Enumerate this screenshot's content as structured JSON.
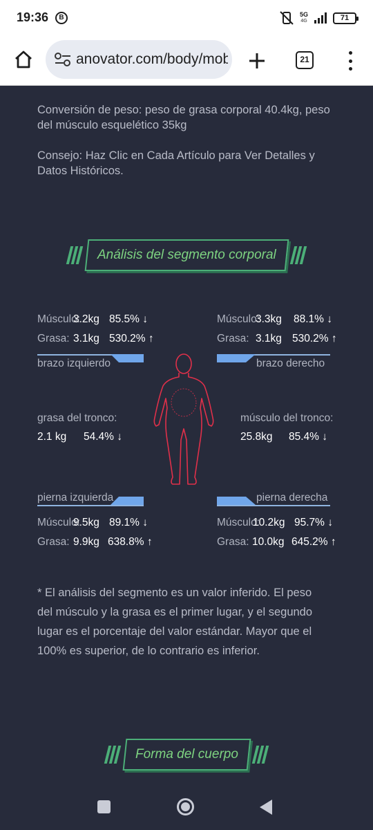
{
  "status": {
    "time": "19:36",
    "b_badge": "B",
    "net": "5G",
    "net_sub": "4G",
    "battery": "71"
  },
  "browser": {
    "url": "anovator.com/body/mobile",
    "tab_count": "21"
  },
  "intro": {
    "conversion": "Conversión de peso: peso de grasa corporal 40.4kg, peso del músculo esquelético 35kg",
    "tip": "Consejo: Haz Clic en Cada Artículo para Ver Detalles y Datos Históricos."
  },
  "segment_title": "Análisis del segmento corporal",
  "segments": {
    "left_arm": {
      "name": "brazo izquierdo",
      "muscle_label": "Músculo:",
      "muscle_kg": "3.2kg",
      "muscle_pct": "85.5% ↓",
      "fat_label": "Grasa:",
      "fat_kg": "3.1kg",
      "fat_pct": "530.2% ↑"
    },
    "right_arm": {
      "name": "brazo derecho",
      "muscle_label": "Músculo:",
      "muscle_kg": "3.3kg",
      "muscle_pct": "88.1% ↓",
      "fat_label": "Grasa:",
      "fat_kg": "3.1kg",
      "fat_pct": "530.2% ↑"
    },
    "trunk_fat": {
      "name": "grasa del tronco:",
      "kg": "2.1 kg",
      "pct": "54.4% ↓"
    },
    "trunk_muscle": {
      "name": "músculo del tronco:",
      "kg": "25.8kg",
      "pct": "85.4% ↓"
    },
    "left_leg": {
      "name": "pierna izquierda",
      "muscle_label": "Músculo:",
      "muscle_kg": "9.5kg",
      "muscle_pct": "89.1% ↓",
      "fat_label": "Grasa:",
      "fat_kg": "9.9kg",
      "fat_pct": "638.8% ↑"
    },
    "right_leg": {
      "name": "pierna derecha",
      "muscle_label": "Músculo:",
      "muscle_kg": "10.2kg",
      "muscle_pct": "95.7% ↓",
      "fat_label": "Grasa:",
      "fat_kg": "10.0kg",
      "fat_pct": "645.2% ↑"
    }
  },
  "footnote": "* El análisis del segmento es un valor inferido. El peso del músculo y la grasa es el primer lugar, y el segundo lugar es el porcentaje del valor estándar. Mayor que el 100% es superior, de lo contrario es inferior.",
  "body_shape_title": "Forma del cuerpo",
  "colors": {
    "accent_green": "#7ed481",
    "body_outline": "#e0304a",
    "segment_blue": "#70a6ea",
    "background": "#272b3b"
  }
}
